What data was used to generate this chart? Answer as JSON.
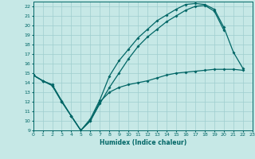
{
  "xlabel": "Humidex (Indice chaleur)",
  "xlim": [
    0,
    23
  ],
  "ylim": [
    9,
    22.5
  ],
  "yticks": [
    9,
    10,
    11,
    12,
    13,
    14,
    15,
    16,
    17,
    18,
    19,
    20,
    21,
    22
  ],
  "xticks": [
    0,
    1,
    2,
    3,
    4,
    5,
    6,
    7,
    8,
    9,
    10,
    11,
    12,
    13,
    14,
    15,
    16,
    17,
    18,
    19,
    20,
    21,
    22,
    23
  ],
  "background_color": "#c6e8e6",
  "grid_color": "#9ecece",
  "line_color": "#006666",
  "line1_y": [
    14.8,
    14.2,
    13.8,
    12.1,
    10.5,
    9.0,
    10.2,
    12.2,
    14.7,
    16.3,
    17.5,
    18.7,
    19.6,
    20.5,
    21.1,
    21.7,
    22.2,
    22.3,
    22.2,
    21.7,
    19.8,
    17.2,
    15.5,
    null
  ],
  "line2_y": [
    14.8,
    14.2,
    13.7,
    12.0,
    10.5,
    9.0,
    10.0,
    11.8,
    13.5,
    15.0,
    16.5,
    17.8,
    18.8,
    19.6,
    20.4,
    21.0,
    21.6,
    22.0,
    22.1,
    21.5,
    19.5,
    null,
    null,
    null
  ],
  "line3_y": [
    14.8,
    14.2,
    13.7,
    12.0,
    10.5,
    9.0,
    10.0,
    12.0,
    13.0,
    13.5,
    13.8,
    14.0,
    14.2,
    14.5,
    14.8,
    15.0,
    15.1,
    15.2,
    15.3,
    15.4,
    15.4,
    15.4,
    15.3,
    null
  ]
}
